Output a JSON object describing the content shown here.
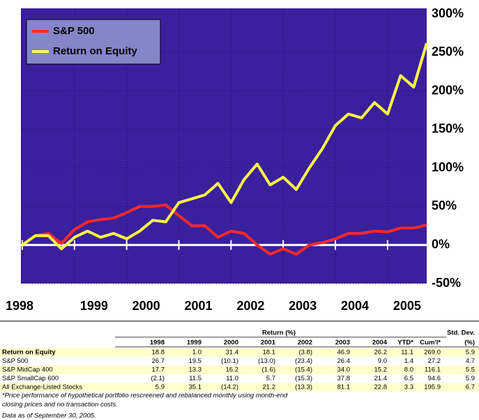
{
  "chart_data": {
    "type": "line",
    "x": [
      1998,
      1998.25,
      1998.5,
      1998.75,
      1999,
      1999.25,
      1999.5,
      1999.75,
      2000,
      2000.25,
      2000.5,
      2000.75,
      2001,
      2001.25,
      2001.5,
      2001.75,
      2002,
      2002.25,
      2002.5,
      2002.75,
      2003,
      2003.25,
      2003.5,
      2003.75,
      2004,
      2004.25,
      2004.5,
      2004.75,
      2005,
      2005.25,
      2005.5,
      2005.75
    ],
    "xlim": [
      1998,
      2005.75
    ],
    "xticks": [
      1998,
      1999,
      2000,
      2001,
      2002,
      2003,
      2004,
      2005
    ],
    "ylim": [
      -50,
      300
    ],
    "yticks": [
      {
        "value": 300,
        "label": "300%"
      },
      {
        "value": 250,
        "label": "250%"
      },
      {
        "value": 200,
        "label": "200%"
      },
      {
        "value": 150,
        "label": "150%"
      },
      {
        "value": 100,
        "label": "100%"
      },
      {
        "value": 50,
        "label": "50%"
      },
      {
        "value": 0,
        "label": "0%"
      },
      {
        "value": -50,
        "label": "-50%"
      }
    ],
    "grid": true,
    "legend": "upper left",
    "series": [
      {
        "name": "S&P 500",
        "color": "#ff2a2a",
        "values": [
          0,
          12,
          15,
          2,
          20,
          30,
          33,
          35,
          42,
          50,
          50,
          52,
          38,
          25,
          25,
          10,
          18,
          15,
          0,
          -12,
          -5,
          -12,
          0,
          3,
          8,
          15,
          15,
          18,
          17,
          22,
          22,
          26
        ]
      },
      {
        "name": "Return on Equity",
        "color": "#ffff44",
        "values": [
          0,
          12,
          12,
          -5,
          10,
          18,
          10,
          15,
          8,
          18,
          32,
          30,
          55,
          60,
          65,
          80,
          55,
          85,
          105,
          78,
          88,
          72,
          100,
          125,
          155,
          170,
          165,
          185,
          170,
          220,
          205,
          262
        ]
      }
    ]
  },
  "table": {
    "group_header": "Return (%)",
    "std_header": "Std. Dev.",
    "columns": [
      "1998",
      "1999",
      "2000",
      "2001",
      "2002",
      "2003",
      "2004",
      "YTD*",
      "Cum'l*",
      "(%)"
    ],
    "rows": [
      [
        "Return on Equity",
        "18.8",
        "1.0",
        "31.4",
        "18.1",
        "(3.8)",
        "46.9",
        "26.2",
        "11.1",
        "269.0",
        "5.9"
      ],
      [
        "S&P 500",
        "26.7",
        "19.5",
        "(10.1)",
        "(13.0)",
        "(23.4)",
        "26.4",
        "9.0",
        "1.4",
        "27.2",
        "4.7"
      ],
      [
        "S&P MidCap 400",
        "17.7",
        "13.3",
        "16.2",
        "(1.6)",
        "(15.4)",
        "34.0",
        "15.2",
        "8.0",
        "116.1",
        "5.5"
      ],
      [
        "S&P SmallCap 600",
        "(2.1)",
        "11.5",
        "11.0",
        "5.7",
        "(15.3)",
        "37.8",
        "21.4",
        "6.5",
        "94.6",
        "5.9"
      ],
      [
        "All Exchange-Listed Stocks",
        "5.9",
        "35.1",
        "(14.2)",
        "21.2",
        "(13.3)",
        "81.1",
        "22.8",
        "3.3",
        "195.9",
        "6.7"
      ]
    ]
  },
  "notes": [
    "*Price performance of hypothetical portfolio rescreened and rebalanced monthly using month-end",
    "closing prices and no transaction costs.",
    "Data as of September 30, 2005."
  ]
}
